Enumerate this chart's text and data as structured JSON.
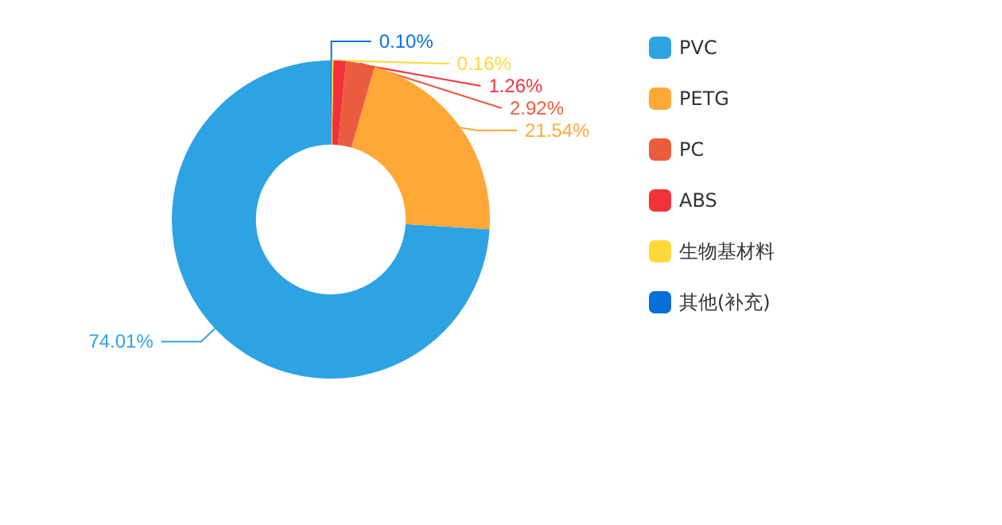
{
  "chart_data": {
    "type": "donut",
    "categories": [
      "PVC",
      "PETG",
      "PC",
      "ABS",
      "生物基材料",
      "其他(补充)"
    ],
    "values": [
      74.01,
      21.54,
      2.92,
      1.26,
      0.16,
      0.1
    ],
    "value_labels": [
      "74.01%",
      "21.54%",
      "2.92%",
      "1.26%",
      "0.16%",
      "0.10%"
    ],
    "colors": [
      "#2ea3e3",
      "#ffa837",
      "#eb5c3e",
      "#f2323a",
      "#ffd93a",
      "#0a6fd9"
    ],
    "legend": "right"
  }
}
